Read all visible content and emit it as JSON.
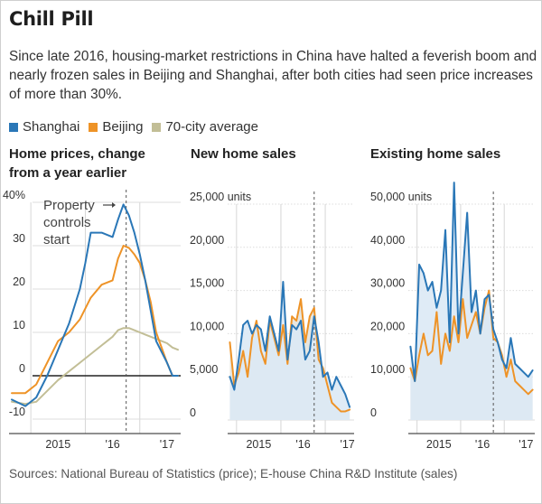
{
  "header": {
    "title": "Chill Pill",
    "subtitle": "Since late 2016, housing-market restrictions in China have halted a feverish boom and nearly frozen sales in Beijing and Shanghai, after both cities had seen price increases of more than 30%."
  },
  "legend": [
    {
      "label": "Shanghai",
      "color": "#2a77b7"
    },
    {
      "label": "Beijing",
      "color": "#ee9327"
    },
    {
      "label": "70-city average",
      "color": "#c2be96"
    }
  ],
  "colors": {
    "shanghai": "#2a77b7",
    "beijing": "#ee9327",
    "avg": "#c2be96",
    "sales_fill": "#e6e6e0",
    "shanghai_fill": "#dce9f5"
  },
  "chart_data": [
    {
      "type": "line",
      "title": "Home prices, change from a year earlier",
      "x_tick_labels": [
        "2015",
        "'16",
        "'17"
      ],
      "x_range": [
        2014.6,
        2017.75
      ],
      "ylim": [
        -10,
        40
      ],
      "yticks": [
        -10,
        0,
        10,
        20,
        30,
        40
      ],
      "ytick_labels": [
        "-10",
        "0",
        "10",
        "20",
        "30",
        "40%"
      ],
      "annotation": {
        "text": [
          "Property",
          "controls",
          "start"
        ],
        "x": 2016.75
      },
      "series": [
        {
          "name": "Shanghai",
          "x": [
            2014.65,
            2014.9,
            2015.1,
            2015.3,
            2015.5,
            2015.7,
            2015.9,
            2016.0,
            2016.1,
            2016.3,
            2016.5,
            2016.6,
            2016.7,
            2016.8,
            2016.9,
            2017.0,
            2017.1,
            2017.2,
            2017.3,
            2017.5,
            2017.6,
            2017.7
          ],
          "y": [
            -5.5,
            -7,
            -5,
            0,
            6,
            12,
            20,
            26,
            33,
            33,
            32,
            36,
            39.5,
            37,
            33,
            28,
            22,
            15,
            8,
            3,
            0,
            0
          ]
        },
        {
          "name": "Beijing",
          "x": [
            2014.65,
            2014.9,
            2015.1,
            2015.3,
            2015.5,
            2015.7,
            2015.9,
            2016.1,
            2016.3,
            2016.5,
            2016.6,
            2016.7,
            2016.8,
            2016.9,
            2017.0,
            2017.1,
            2017.2,
            2017.3,
            2017.5,
            2017.6,
            2017.7
          ],
          "y": [
            -4,
            -4,
            -2,
            3,
            8,
            10,
            13,
            18,
            21,
            22,
            27,
            30,
            29.5,
            28,
            26,
            22,
            17,
            10,
            3,
            0,
            0
          ]
        },
        {
          "name": "70-city average",
          "x": [
            2014.65,
            2014.9,
            2015.1,
            2015.3,
            2015.5,
            2015.7,
            2015.9,
            2016.1,
            2016.3,
            2016.5,
            2016.6,
            2016.7,
            2016.8,
            2016.9,
            2017.0,
            2017.1,
            2017.2,
            2017.3,
            2017.5,
            2017.6,
            2017.7
          ],
          "y": [
            -6,
            -6.5,
            -6,
            -3.5,
            -1,
            1,
            3,
            5,
            7,
            9,
            10.5,
            11,
            11,
            10.5,
            10,
            9.5,
            9,
            8.5,
            7.5,
            6.5,
            6
          ]
        }
      ]
    },
    {
      "type": "area",
      "title": "New home sales",
      "x_tick_labels": [
        "2015",
        "'16",
        "'17"
      ],
      "x_range": [
        2014.8,
        2017.65
      ],
      "ylim": [
        0,
        25000
      ],
      "yticks": [
        0,
        5000,
        10000,
        15000,
        20000,
        25000
      ],
      "ytick_labels": [
        "0",
        "5,000",
        "10,000",
        "15,000",
        "20,000",
        "25,000 units"
      ],
      "annotation_x": 2016.75,
      "series": [
        {
          "name": "Shanghai",
          "x": [
            2014.85,
            2014.95,
            2015.05,
            2015.15,
            2015.25,
            2015.35,
            2015.45,
            2015.55,
            2015.65,
            2015.75,
            2015.85,
            2015.95,
            2016.05,
            2016.15,
            2016.25,
            2016.35,
            2016.45,
            2016.55,
            2016.65,
            2016.75,
            2016.85,
            2016.95,
            2017.05,
            2017.15,
            2017.25,
            2017.35,
            2017.45,
            2017.55
          ],
          "y": [
            5000,
            3500,
            7000,
            11000,
            11500,
            10000,
            11000,
            10500,
            8000,
            12000,
            10000,
            8000,
            16000,
            7000,
            11000,
            10500,
            11500,
            7000,
            8000,
            12000,
            9000,
            5000,
            5500,
            3500,
            5000,
            4000,
            3000,
            1500
          ]
        },
        {
          "name": "Beijing",
          "x": [
            2014.85,
            2014.95,
            2015.05,
            2015.15,
            2015.25,
            2015.35,
            2015.45,
            2015.55,
            2015.65,
            2015.75,
            2015.85,
            2015.95,
            2016.05,
            2016.15,
            2016.25,
            2016.35,
            2016.45,
            2016.55,
            2016.65,
            2016.75,
            2016.85,
            2016.95,
            2017.05,
            2017.15,
            2017.25,
            2017.35,
            2017.45,
            2017.55
          ],
          "y": [
            9000,
            4000,
            5500,
            8000,
            5000,
            9500,
            11500,
            8000,
            6500,
            11500,
            9500,
            7500,
            11000,
            6500,
            12000,
            11500,
            14000,
            9000,
            12000,
            13000,
            7000,
            6000,
            4000,
            2000,
            1500,
            1000,
            1000,
            1200
          ]
        }
      ]
    },
    {
      "type": "area",
      "title": "Existing home sales",
      "x_tick_labels": [
        "2015",
        "'16",
        "'17"
      ],
      "x_range": [
        2014.8,
        2017.7
      ],
      "ylim": [
        0,
        50000
      ],
      "yticks": [
        0,
        10000,
        20000,
        30000,
        40000,
        50000
      ],
      "ytick_labels": [
        "0",
        "10,000",
        "20,000",
        "30,000",
        "40,000",
        "50,000 units"
      ],
      "annotation_x": 2016.75,
      "series": [
        {
          "name": "Shanghai",
          "x": [
            2014.85,
            2014.95,
            2015.05,
            2015.15,
            2015.25,
            2015.35,
            2015.45,
            2015.55,
            2015.65,
            2015.75,
            2015.85,
            2015.95,
            2016.05,
            2016.15,
            2016.25,
            2016.35,
            2016.45,
            2016.55,
            2016.65,
            2016.75,
            2016.85,
            2016.95,
            2017.05,
            2017.15,
            2017.25,
            2017.35,
            2017.45,
            2017.55,
            2017.65
          ],
          "y": [
            17000,
            9000,
            36000,
            34000,
            30000,
            32000,
            26000,
            30000,
            44000,
            18000,
            55000,
            20000,
            34000,
            48000,
            25000,
            30000,
            20000,
            28000,
            29000,
            21000,
            18000,
            14000,
            12000,
            19000,
            13000,
            12000,
            11000,
            10000,
            11500
          ]
        },
        {
          "name": "Beijing",
          "x": [
            2014.85,
            2014.95,
            2015.05,
            2015.15,
            2015.25,
            2015.35,
            2015.45,
            2015.55,
            2015.65,
            2015.75,
            2015.85,
            2015.95,
            2016.05,
            2016.15,
            2016.25,
            2016.35,
            2016.45,
            2016.55,
            2016.65,
            2016.75,
            2016.85,
            2016.95,
            2017.05,
            2017.15,
            2017.25,
            2017.35,
            2017.45,
            2017.55,
            2017.65
          ],
          "y": [
            12000,
            9000,
            15000,
            20000,
            15000,
            16000,
            25000,
            13000,
            20000,
            16000,
            24000,
            18000,
            28000,
            19000,
            22000,
            25000,
            20000,
            26000,
            30000,
            19000,
            18000,
            15000,
            10000,
            14000,
            9000,
            8000,
            7000,
            6000,
            7000
          ]
        }
      ]
    }
  ],
  "source": "Sources: National Bureau of Statistics (price); E-house China R&D Institute (sales)"
}
